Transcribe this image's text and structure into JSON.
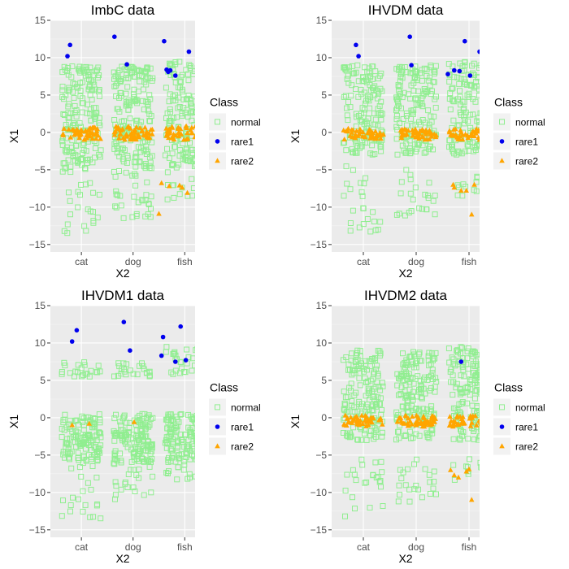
{
  "chart_data": [
    {
      "type": "scatter",
      "title": "ImbC data",
      "xlabel": "X2",
      "ylabel": "X1",
      "categories": [
        "cat",
        "dog",
        "fish"
      ],
      "yticks": [
        "−15",
        "−10",
        "−5",
        "0",
        "5",
        "10",
        "15"
      ],
      "ylim": [
        -16,
        15
      ],
      "grid": true,
      "legend": {
        "title": "Class",
        "entries": [
          "normal",
          "rare1",
          "rare2"
        ],
        "position": "right"
      },
      "series": [
        {
          "name": "normal",
          "shape": "open-square",
          "color": "#90ee90",
          "clusters": [
            {
              "x": 1.0,
              "y_core": [
                -5,
                9
              ],
              "y_tail": [
                -13.5,
                -5
              ],
              "core_n": 170,
              "tail_n": 24
            },
            {
              "x": 2.0,
              "y_core": [
                -6,
                9
              ],
              "y_tail": [
                -11.5,
                -6
              ],
              "core_n": 190,
              "tail_n": 26
            },
            {
              "x": 3.0,
              "y_core": [
                -5,
                9.5
              ],
              "y_tail": [
                -9,
                -5
              ],
              "core_n": 170,
              "tail_n": 16
            }
          ]
        },
        {
          "name": "rare1",
          "shape": "filled-circle",
          "color": "#0000ee",
          "points": [
            [
              0.73,
              10.2
            ],
            [
              0.78,
              11.7
            ],
            [
              1.64,
              12.8
            ],
            [
              1.88,
              9.1
            ],
            [
              2.6,
              12.2
            ],
            [
              2.65,
              8.4
            ],
            [
              2.68,
              8.1
            ],
            [
              2.72,
              8.3
            ],
            [
              2.82,
              7.6
            ],
            [
              3.08,
              10.8
            ]
          ]
        },
        {
          "name": "rare2",
          "shape": "filled-triangle",
          "color": "#ffa500",
          "clusters": [
            {
              "x": 1.0,
              "y_band": [
                -1,
                0.8
              ],
              "n": 50
            },
            {
              "x": 2.0,
              "y_band": [
                -1,
                0.8
              ],
              "n": 55
            },
            {
              "x": 3.0,
              "y_band": [
                -1,
                0.8
              ],
              "n": 50
            }
          ],
          "points": [
            [
              2.5,
              -10.9
            ],
            [
              2.55,
              -6.8
            ],
            [
              2.7,
              -7.2
            ],
            [
              2.9,
              -7.1
            ],
            [
              2.95,
              -7.4
            ],
            [
              3.05,
              -8.1
            ]
          ]
        }
      ]
    },
    {
      "type": "scatter",
      "title": "IHVDM data",
      "xlabel": "X2",
      "ylabel": "X1",
      "categories": [
        "cat",
        "dog",
        "fish"
      ],
      "yticks": [
        "−15",
        "−10",
        "−5",
        "0",
        "5",
        "10",
        "15"
      ],
      "ylim": [
        -16,
        15
      ],
      "grid": true,
      "legend": {
        "title": "Class",
        "entries": [
          "normal",
          "rare1",
          "rare2"
        ],
        "position": "right"
      },
      "series": [
        {
          "name": "normal",
          "shape": "open-square",
          "color": "#90ee90",
          "clusters": [
            {
              "x": 1.0,
              "y_core": [
                -3,
                9
              ],
              "y_tail": [
                -13.5,
                -4.5
              ],
              "core_n": 150,
              "tail_n": 24
            },
            {
              "x": 2.0,
              "y_core": [
                -3,
                9
              ],
              "y_tail": [
                -11.5,
                -5
              ],
              "core_n": 160,
              "tail_n": 24
            },
            {
              "x": 3.0,
              "y_core": [
                -3,
                9.5
              ],
              "y_tail": [
                -8.5,
                -5.5
              ],
              "core_n": 150,
              "tail_n": 16
            }
          ]
        },
        {
          "name": "rare1",
          "shape": "filled-circle",
          "color": "#0000ee",
          "points": [
            [
              0.86,
              11.7
            ],
            [
              0.91,
              10.2
            ],
            [
              1.88,
              12.8
            ],
            [
              1.91,
              9.0
            ],
            [
              2.6,
              7.8
            ],
            [
              2.72,
              8.3
            ],
            [
              2.82,
              8.2
            ],
            [
              2.92,
              12.2
            ],
            [
              3.02,
              7.6
            ],
            [
              3.2,
              10.8
            ]
          ]
        },
        {
          "name": "rare2",
          "shape": "filled-triangle",
          "color": "#ffa500",
          "clusters": [
            {
              "x": 1.0,
              "y_band": [
                -1,
                0.5
              ],
              "n": 45
            },
            {
              "x": 2.0,
              "y_band": [
                -1,
                0.5
              ],
              "n": 50
            },
            {
              "x": 3.0,
              "y_band": [
                -1,
                0.5
              ],
              "n": 45
            }
          ],
          "points": [
            [
              2.7,
              -7.0
            ],
            [
              2.72,
              -7.4
            ],
            [
              2.85,
              -7.8
            ],
            [
              2.95,
              -7.8
            ],
            [
              3.05,
              -11.0
            ],
            [
              3.1,
              -7.0
            ]
          ]
        }
      ]
    },
    {
      "type": "scatter",
      "title": "IHVDM1 data",
      "xlabel": "X2",
      "ylabel": "X1",
      "categories": [
        "cat",
        "dog",
        "fish"
      ],
      "yticks": [
        "−15",
        "−10",
        "−5",
        "0",
        "5",
        "10",
        "15"
      ],
      "ylim": [
        -16,
        15
      ],
      "grid": true,
      "legend": {
        "title": "Class",
        "entries": [
          "normal",
          "rare1",
          "rare2"
        ],
        "position": "right"
      },
      "series": [
        {
          "name": "normal",
          "shape": "open-square",
          "color": "#90ee90",
          "clusters": [
            {
              "x": 1.0,
              "y_core": [
                -6,
                0.5
              ],
              "y_tail": [
                -13.5,
                -6
              ],
              "core_n": 130,
              "tail_n": 22,
              "y_upper": [
                5.5,
                7.5
              ],
              "upper_n": 22
            },
            {
              "x": 2.0,
              "y_core": [
                -6,
                0.5
              ],
              "y_tail": [
                -11.5,
                -6
              ],
              "core_n": 140,
              "tail_n": 22,
              "y_upper": [
                5.5,
                7.5
              ],
              "upper_n": 24
            },
            {
              "x": 3.0,
              "y_core": [
                -6,
                0.5
              ],
              "y_tail": [
                -9.5,
                -6
              ],
              "core_n": 130,
              "tail_n": 14,
              "y_upper": [
                5.5,
                9.5
              ],
              "upper_n": 26
            }
          ]
        },
        {
          "name": "rare1",
          "shape": "filled-circle",
          "color": "#0000ee",
          "points": [
            [
              0.82,
              10.2
            ],
            [
              0.91,
              11.7
            ],
            [
              1.82,
              12.8
            ],
            [
              1.94,
              9.0
            ],
            [
              2.55,
              8.3
            ],
            [
              2.58,
              10.8
            ],
            [
              2.82,
              7.5
            ],
            [
              2.92,
              12.2
            ],
            [
              3.02,
              7.7
            ]
          ]
        },
        {
          "name": "rare2",
          "shape": "filled-triangle",
          "color": "#ffa500",
          "points": [
            [
              0.82,
              -1.0
            ],
            [
              1.15,
              -0.8
            ],
            [
              2.02,
              -0.6
            ]
          ]
        }
      ]
    },
    {
      "type": "scatter",
      "title": "IHVDM2 data",
      "xlabel": "X2",
      "ylabel": "X1",
      "categories": [
        "cat",
        "dog",
        "fish"
      ],
      "yticks": [
        "−15",
        "−10",
        "−5",
        "0",
        "5",
        "10",
        "15"
      ],
      "ylim": [
        -16,
        15
      ],
      "grid": true,
      "legend": {
        "title": "Class",
        "entries": [
          "normal",
          "rare1",
          "rare2"
        ],
        "position": "right"
      },
      "series": [
        {
          "name": "normal",
          "shape": "open-square",
          "color": "#90ee90",
          "clusters": [
            {
              "x": 1.0,
              "y_core": [
                -3,
                9
              ],
              "y_tail": [
                -13.5,
                -5.5
              ],
              "core_n": 160,
              "tail_n": 24
            },
            {
              "x": 2.0,
              "y_core": [
                -3,
                9
              ],
              "y_tail": [
                -11.5,
                -5.5
              ],
              "core_n": 170,
              "tail_n": 24
            },
            {
              "x": 3.0,
              "y_core": [
                -3,
                9.5
              ],
              "y_tail": [
                -9,
                -5.5
              ],
              "core_n": 160,
              "tail_n": 14
            }
          ]
        },
        {
          "name": "rare1",
          "shape": "filled-circle",
          "color": "#0000ee",
          "points": [
            [
              2.85,
              7.5
            ]
          ]
        },
        {
          "name": "rare2",
          "shape": "filled-triangle",
          "color": "#ffa500",
          "clusters": [
            {
              "x": 1.0,
              "y_band": [
                -1.2,
                0.3
              ],
              "n": 45
            },
            {
              "x": 2.0,
              "y_band": [
                -1.2,
                0.3
              ],
              "n": 50
            },
            {
              "x": 3.0,
              "y_band": [
                -1.2,
                0.3
              ],
              "n": 45
            }
          ],
          "points": [
            [
              2.65,
              -7.0
            ],
            [
              2.72,
              -7.7
            ],
            [
              2.8,
              -8.0
            ],
            [
              2.95,
              -7.2
            ],
            [
              3.0,
              -6.9
            ],
            [
              3.05,
              -11.0
            ]
          ]
        }
      ]
    }
  ],
  "colors": {
    "panel_bg": "#ebebeb",
    "grid_major": "#ffffff",
    "grid_minor": "#f5f5f5",
    "tick": "#333333"
  }
}
